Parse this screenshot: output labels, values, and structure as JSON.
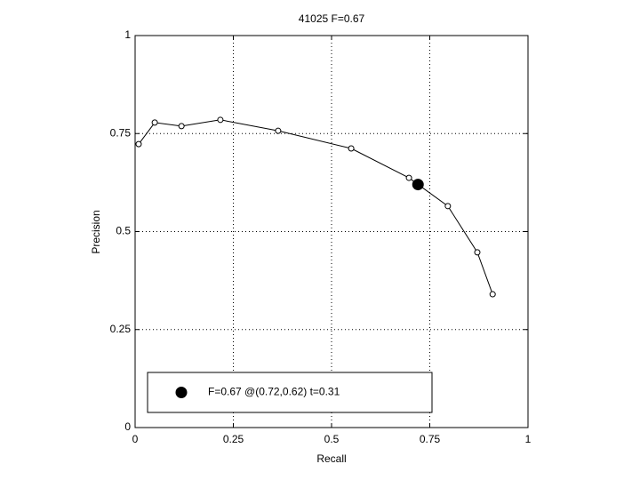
{
  "chart_data": {
    "type": "line",
    "title": "41025 F=0.67",
    "x_label": "Recall",
    "y_label": "Precision",
    "xlim": [
      0,
      1
    ],
    "ylim": [
      0,
      1
    ],
    "xticks": [
      0,
      0.25,
      0.5,
      0.75,
      1
    ],
    "yticks": [
      0,
      0.25,
      0.5,
      0.75,
      1
    ],
    "grid": true,
    "legend": "lower left",
    "series": [
      {
        "color": "#000000",
        "marker": "open-circle",
        "x": [
          0.009,
          0.05,
          0.118,
          0.217,
          0.364,
          0.55,
          0.697,
          0.796,
          0.871,
          0.91
        ],
        "values": [
          0.723,
          0.778,
          0.769,
          0.785,
          0.757,
          0.712,
          0.637,
          0.565,
          0.447,
          0.34
        ]
      },
      {
        "name": "F=0.67 @(0.72,0.62) t=0.31",
        "color": "#000000",
        "marker": "filled-circle",
        "x": [
          0.72
        ],
        "values": [
          0.62
        ]
      }
    ]
  }
}
